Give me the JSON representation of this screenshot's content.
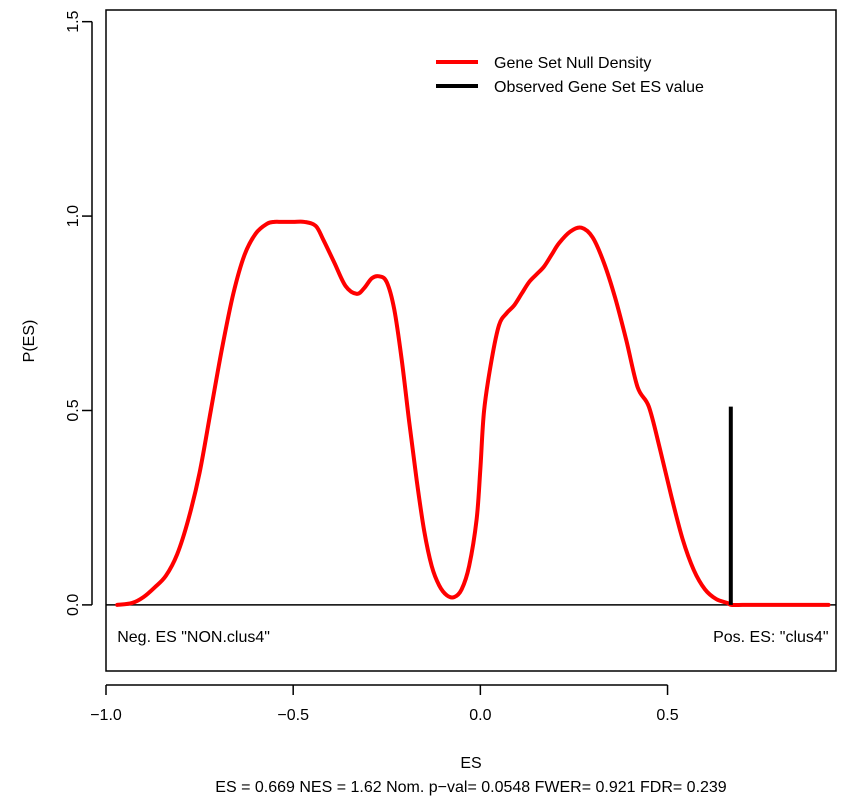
{
  "chart_data": {
    "type": "line",
    "title": "",
    "xlabel": "ES",
    "ylabel": "P(ES)",
    "subtitle": "ES = 0.669  NES = 1.62 Nom. p−val= 0.0548 FWER= 0.921 FDR= 0.239",
    "xlim": [
      -1.0,
      0.95
    ],
    "ylim": [
      -0.17,
      1.53
    ],
    "xticks": [
      {
        "value": -1.0,
        "label": "−1.0"
      },
      {
        "value": -0.5,
        "label": "−0.5"
      },
      {
        "value": 0.0,
        "label": "0.0"
      },
      {
        "value": 0.5,
        "label": "0.5"
      }
    ],
    "yticks": [
      {
        "value": 0.0,
        "label": "0.0"
      },
      {
        "value": 0.5,
        "label": "0.5"
      },
      {
        "value": 1.0,
        "label": "1.0"
      },
      {
        "value": 1.5,
        "label": "1.5"
      }
    ],
    "grid": false,
    "legend_position": "top-right",
    "series": [
      {
        "name": "Gene Set Null Density",
        "color": "#ff0000",
        "x": [
          -0.97,
          -0.93,
          -0.9,
          -0.87,
          -0.84,
          -0.81,
          -0.78,
          -0.75,
          -0.72,
          -0.69,
          -0.66,
          -0.63,
          -0.6,
          -0.57,
          -0.55,
          -0.53,
          -0.5,
          -0.47,
          -0.44,
          -0.42,
          -0.39,
          -0.36,
          -0.33,
          -0.31,
          -0.29,
          -0.27,
          -0.25,
          -0.23,
          -0.21,
          -0.19,
          -0.17,
          -0.15,
          -0.13,
          -0.11,
          -0.09,
          -0.07,
          -0.05,
          -0.03,
          -0.01,
          0.0,
          0.01,
          0.03,
          0.05,
          0.07,
          0.09,
          0.11,
          0.13,
          0.15,
          0.17,
          0.19,
          0.21,
          0.24,
          0.27,
          0.3,
          0.33,
          0.36,
          0.39,
          0.42,
          0.45,
          0.48,
          0.51,
          0.54,
          0.57,
          0.6,
          0.63,
          0.66,
          0.67,
          0.7,
          0.73,
          0.76,
          0.79,
          0.82,
          0.85,
          0.88,
          0.91,
          0.93
        ],
        "y": [
          0.0,
          0.005,
          0.02,
          0.045,
          0.075,
          0.13,
          0.22,
          0.34,
          0.5,
          0.66,
          0.8,
          0.9,
          0.955,
          0.98,
          0.985,
          0.985,
          0.985,
          0.985,
          0.975,
          0.94,
          0.88,
          0.82,
          0.8,
          0.815,
          0.84,
          0.845,
          0.83,
          0.76,
          0.63,
          0.47,
          0.32,
          0.19,
          0.1,
          0.05,
          0.025,
          0.02,
          0.04,
          0.1,
          0.22,
          0.35,
          0.5,
          0.63,
          0.72,
          0.75,
          0.77,
          0.8,
          0.83,
          0.85,
          0.87,
          0.9,
          0.93,
          0.96,
          0.97,
          0.945,
          0.88,
          0.79,
          0.68,
          0.56,
          0.51,
          0.4,
          0.28,
          0.17,
          0.09,
          0.04,
          0.015,
          0.005,
          0.0,
          0.0,
          0.0,
          0.0,
          0.0,
          0.0,
          0.0,
          0.0,
          0.0,
          0.0
        ]
      },
      {
        "name": "Observed Gene Set ES value",
        "color": "#000000",
        "x": [
          0.669,
          0.669
        ],
        "y": [
          0.0,
          0.51
        ]
      }
    ],
    "annotations": [
      {
        "text": "Neg. ES \"NON.clus4\"",
        "x": -0.97,
        "y": -0.08,
        "anchor": "start"
      },
      {
        "text": "Pos. ES: \"clus4\"",
        "x": 0.93,
        "y": -0.08,
        "anchor": "end"
      }
    ]
  }
}
